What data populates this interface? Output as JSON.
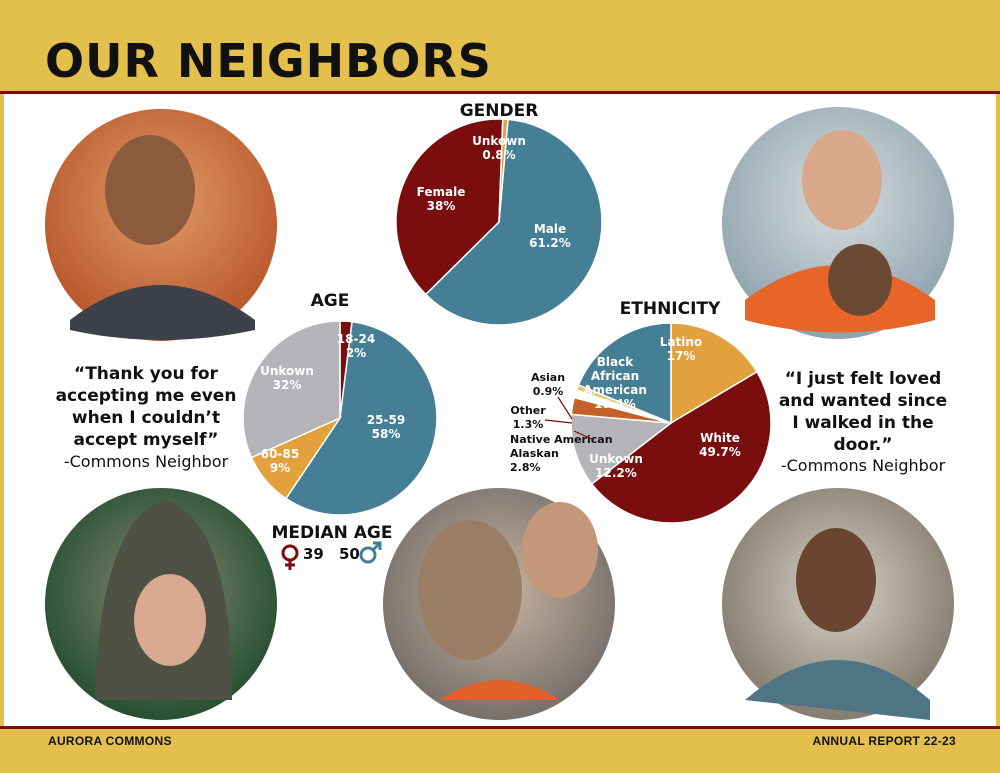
{
  "page": {
    "title": "OUR NEIGHBORS",
    "footer_left": "AURORA COMMONS",
    "footer_right": "ANNUAL REPORT 22-23"
  },
  "colors": {
    "band": "#e3bf4c",
    "rule": "#7a0d0d",
    "red": "#7a0d0d",
    "blue": "#447f95",
    "gray": "#b5b4b8",
    "orange": "#e3a13e",
    "tan": "#e8c56a",
    "copper": "#c4602a"
  },
  "quotes": [
    {
      "lines": [
        "“Thank you for",
        "accepting me even",
        "when I couldn’t",
        "accept myself”"
      ],
      "attribution": "-Commons Neighbor"
    },
    {
      "lines": [
        "“I just felt loved",
        "and wanted since",
        "I walked in the",
        "door.”"
      ],
      "attribution": "-Commons Neighbor"
    }
  ],
  "median_age": {
    "title": "MEDIAN AGE",
    "female": "39",
    "male": "50",
    "female_icon": "female-symbol-icon",
    "male_icon": "male-symbol-icon"
  },
  "photos": [
    {
      "name": "photo-man-smiling"
    },
    {
      "name": "photo-woman-with-dog"
    },
    {
      "name": "photo-woman-hooded"
    },
    {
      "name": "photo-man-kissing-dog"
    },
    {
      "name": "photo-man-portrait"
    }
  ],
  "chart_data": [
    {
      "type": "pie",
      "title": "GENDER",
      "slices": [
        {
          "label": "Male",
          "value": 61.2,
          "text": "61.2%",
          "color": "#447f95"
        },
        {
          "label": "Female",
          "value": 38,
          "text": "38%",
          "color": "#7a0d0d"
        },
        {
          "label": "Unkown",
          "value": 0.8,
          "text": "0.8%",
          "color": "#e3a13e"
        }
      ]
    },
    {
      "type": "pie",
      "title": "AGE",
      "slices": [
        {
          "label": "18-24",
          "value": 2,
          "text": "2%",
          "color": "#7a0d0d"
        },
        {
          "label": "25-59",
          "value": 58,
          "text": "58%",
          "color": "#447f95"
        },
        {
          "label": "60-85",
          "value": 9,
          "text": "9%",
          "color": "#e3a13e"
        },
        {
          "label": "Unkown",
          "value": 32,
          "text": "32%",
          "color": "#b5b4b8"
        }
      ]
    },
    {
      "type": "pie",
      "title": "ETHNICITY",
      "slices": [
        {
          "label": "Latino",
          "value": 17,
          "text": "17%",
          "color": "#e3a13e"
        },
        {
          "label": "White",
          "value": 49.7,
          "text": "49.7%",
          "color": "#7a0d0d"
        },
        {
          "label": "Unkown",
          "value": 12.2,
          "text": "12.2%",
          "color": "#b5b4b8"
        },
        {
          "label": "Native American Alaskan",
          "value": 2.8,
          "text": "2.8%",
          "color": "#c4602a"
        },
        {
          "label": "Other",
          "value": 1.3,
          "text": "1.3%",
          "color": "#ffffff"
        },
        {
          "label": "Asian",
          "value": 0.9,
          "text": "0.9%",
          "color": "#e8c56a"
        },
        {
          "label": "Black African American",
          "value": 19.4,
          "text": "19.4%",
          "color": "#447f95"
        }
      ]
    }
  ]
}
